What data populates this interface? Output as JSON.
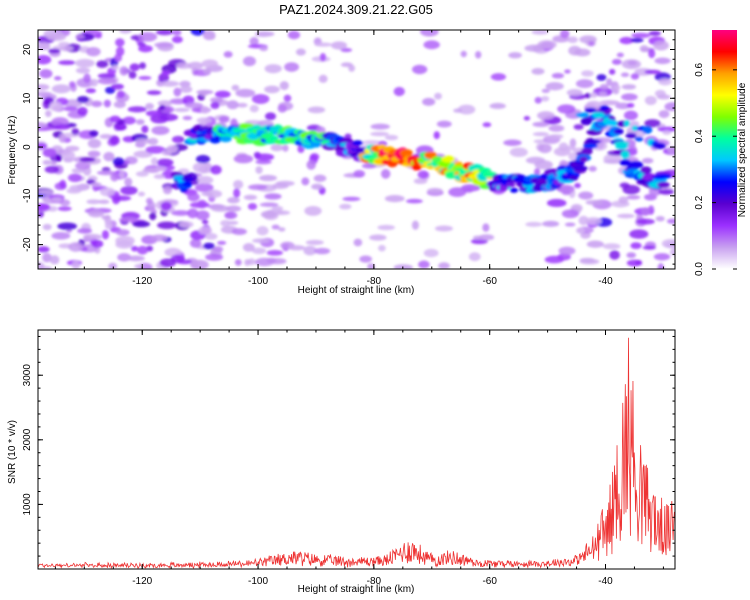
{
  "title": "PAZ1.2024.309.21.22.G05",
  "chart_data": [
    {
      "type": "heatmap",
      "xlabel": "Height of straight line (km)",
      "ylabel": "Frequency (Hz)",
      "xlim": [
        -138,
        -28
      ],
      "ylim": [
        -25,
        24
      ],
      "xticks": [
        -120,
        -100,
        -80,
        -60,
        -40
      ],
      "yticks": [
        -20,
        -10,
        0,
        10,
        20
      ],
      "colorbar": {
        "label": "Normalized spectral amplitude",
        "range": [
          0.0,
          0.72
        ],
        "ticks": [
          0.0,
          0.2,
          0.4,
          0.6
        ],
        "colors": [
          "#ffffff",
          "#c8a0f0",
          "#9b30ff",
          "#5a00d0",
          "#0000ff",
          "#00c8ff",
          "#00ffa0",
          "#80ff00",
          "#ffff00",
          "#ffa000",
          "#ff0000",
          "#ff0080"
        ]
      },
      "ridge": {
        "description_points": [
          {
            "x": -112,
            "y": 2
          },
          {
            "x": -105,
            "y": 3
          },
          {
            "x": -100,
            "y": 2.5
          },
          {
            "x": -95,
            "y": 2.5
          },
          {
            "x": -90,
            "y": 1.5
          },
          {
            "x": -85,
            "y": 0
          },
          {
            "x": -80,
            "y": -1.5
          },
          {
            "x": -76,
            "y": -2
          },
          {
            "x": -73,
            "y": -2.5
          },
          {
            "x": -70,
            "y": -3
          },
          {
            "x": -66,
            "y": -4.5
          },
          {
            "x": -62,
            "y": -6
          },
          {
            "x": -58,
            "y": -7.5
          },
          {
            "x": -54,
            "y": -7.5
          },
          {
            "x": -50,
            "y": -7
          },
          {
            "x": -45,
            "y": -5
          },
          {
            "x": -40,
            "y": 7
          },
          {
            "x": -36,
            "y": -4
          },
          {
            "x": -32,
            "y": -7
          }
        ],
        "peak": {
          "x": -76,
          "y": -2,
          "value": 0.7
        }
      }
    },
    {
      "type": "line",
      "xlabel": "Height of straight line (km)",
      "ylabel": "SNR (10 * v/v)",
      "xlim": [
        -138,
        -28
      ],
      "ylim": [
        0,
        3700
      ],
      "xticks": [
        -120,
        -100,
        -80,
        -60,
        -40
      ],
      "yticks": [
        1000,
        2000,
        3000
      ],
      "series": [
        {
          "color": "#ee3333",
          "envelope": [
            {
              "x": -138,
              "y": 60
            },
            {
              "x": -120,
              "y": 60
            },
            {
              "x": -108,
              "y": 80
            },
            {
              "x": -100,
              "y": 120
            },
            {
              "x": -94,
              "y": 260
            },
            {
              "x": -90,
              "y": 200
            },
            {
              "x": -84,
              "y": 150
            },
            {
              "x": -78,
              "y": 180
            },
            {
              "x": -74,
              "y": 470
            },
            {
              "x": -70,
              "y": 200
            },
            {
              "x": -66,
              "y": 260
            },
            {
              "x": -62,
              "y": 120
            },
            {
              "x": -56,
              "y": 100
            },
            {
              "x": -50,
              "y": 110
            },
            {
              "x": -45,
              "y": 180
            },
            {
              "x": -42,
              "y": 500
            },
            {
              "x": -39,
              "y": 1300
            },
            {
              "x": -37,
              "y": 2700
            },
            {
              "x": -36,
              "y": 3600
            },
            {
              "x": -35,
              "y": 2600
            },
            {
              "x": -33,
              "y": 1600
            },
            {
              "x": -31,
              "y": 1100
            },
            {
              "x": -29,
              "y": 900
            },
            {
              "x": -28,
              "y": 1200
            }
          ]
        }
      ]
    }
  ]
}
